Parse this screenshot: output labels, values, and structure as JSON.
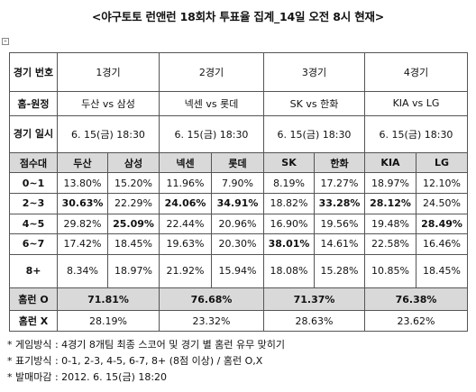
{
  "title": "<야구토토 런앤런 18회차 투표율 집계_14일 오전 8시 현재>",
  "table": {
    "row_game_no": {
      "label": "경기 번호",
      "values": [
        "1경기",
        "2경기",
        "3경기",
        "4경기"
      ]
    },
    "row_matchup": {
      "label": "홈-원정",
      "values": [
        "두산 vs 삼성",
        "넥센 vs 롯데",
        "SK vs 한화",
        "KIA vs LG"
      ]
    },
    "row_datetime": {
      "label": "경기 일시",
      "values": [
        "6. 15(금) 18:30",
        "6. 15(금) 18:30",
        "6. 15(금) 18:30",
        "6. 15(금) 18:30"
      ]
    },
    "score_header": {
      "label": "점수대",
      "teams": [
        "두산",
        "삼성",
        "넥센",
        "롯데",
        "SK",
        "한화",
        "KIA",
        "LG"
      ]
    },
    "score_rows": [
      {
        "label": "0~1",
        "values": [
          "13.80%",
          "15.20%",
          "11.96%",
          "7.90%",
          "8.19%",
          "17.27%",
          "18.97%",
          "12.10%"
        ],
        "bold": [
          false,
          false,
          false,
          false,
          false,
          false,
          false,
          false
        ]
      },
      {
        "label": "2~3",
        "values": [
          "30.63%",
          "22.29%",
          "24.06%",
          "34.91%",
          "18.82%",
          "33.28%",
          "28.12%",
          "24.50%"
        ],
        "bold": [
          true,
          false,
          true,
          true,
          false,
          true,
          true,
          false
        ]
      },
      {
        "label": "4~5",
        "values": [
          "29.82%",
          "25.09%",
          "22.44%",
          "20.96%",
          "16.90%",
          "19.56%",
          "19.48%",
          "28.49%"
        ],
        "bold": [
          false,
          true,
          false,
          false,
          false,
          false,
          false,
          true
        ]
      },
      {
        "label": "6~7",
        "values": [
          "17.42%",
          "18.45%",
          "19.63%",
          "20.30%",
          "38.01%",
          "14.61%",
          "22.58%",
          "16.46%"
        ],
        "bold": [
          false,
          false,
          false,
          false,
          true,
          false,
          false,
          false
        ]
      },
      {
        "label": "8+",
        "values": [
          "8.34%",
          "18.97%",
          "21.92%",
          "15.94%",
          "18.08%",
          "15.28%",
          "10.85%",
          "18.45%"
        ],
        "bold": [
          false,
          false,
          false,
          false,
          false,
          false,
          false,
          false
        ]
      }
    ],
    "row_homerun_o": {
      "label": "홈런 O",
      "values": [
        "71.81%",
        "76.68%",
        "71.37%",
        "76.38%"
      ]
    },
    "row_homerun_x": {
      "label": "홈런 X",
      "values": [
        "28.19%",
        "23.32%",
        "28.63%",
        "23.62%"
      ]
    }
  },
  "notes": [
    "* 게임방식 : 4경기 8개팀 최종 스코어 및 경기 별 홈런 유무 맞히기",
    "* 표기방식 : 0-1, 2-3, 4-5, 6-7, 8+ (8점 이상) / 홈런 O,X",
    "* 발매마감 : 2012. 6. 15(금) 18:20"
  ]
}
